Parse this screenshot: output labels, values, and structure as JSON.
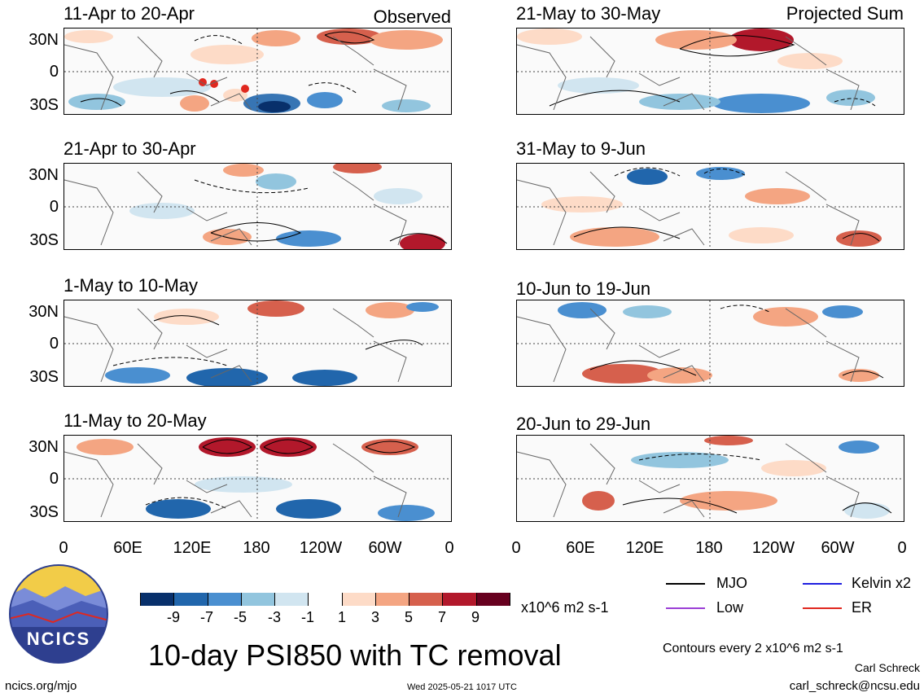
{
  "panels": [
    {
      "title": "11-Apr to 20-Apr",
      "tag": "Observed"
    },
    {
      "title": "21-Apr to 30-Apr",
      "tag": ""
    },
    {
      "title": "1-May to 10-May",
      "tag": ""
    },
    {
      "title": "11-May to 20-May",
      "tag": ""
    },
    {
      "title": "21-May to 30-May",
      "tag": "Projected Sum"
    },
    {
      "title": "31-May to 9-Jun",
      "tag": ""
    },
    {
      "title": "10-Jun to 19-Jun",
      "tag": ""
    },
    {
      "title": "20-Jun to 29-Jun",
      "tag": ""
    }
  ],
  "lat_labels": [
    "30N",
    "0",
    "30S"
  ],
  "lon_labels": [
    "0",
    "60E",
    "120E",
    "180",
    "120W",
    "60W",
    "0"
  ],
  "colorbar": {
    "colors": [
      "#08306b",
      "#2166ac",
      "#4a8fd0",
      "#92c5de",
      "#d1e5f0",
      "#ffffff",
      "#fddbc7",
      "#f4a582",
      "#d6604d",
      "#b2182b",
      "#67001f"
    ],
    "labels": [
      "-9",
      "-7",
      "-5",
      "-3",
      "-1",
      "1",
      "3",
      "5",
      "7",
      "9"
    ],
    "units": "x10^6 m2 s-1"
  },
  "main_title": "10-day PSI850 with TC removal",
  "legend": [
    {
      "label": "MJO",
      "color": "#000000"
    },
    {
      "label": "Kelvin x2",
      "color": "#1f1fe0"
    },
    {
      "label": "Low",
      "color": "#9b3fd6"
    },
    {
      "label": "ER",
      "color": "#e0281f"
    }
  ],
  "contour_note": "Contours every 2 x10^6 m2 s-1",
  "author": "Carl Schreck",
  "email": "carl_schreck@ncsu.edu",
  "site": "ncics.org/mjo",
  "timestamp": "Wed 2025-05-21 1017 UTC",
  "logo_text": "NCICS"
}
